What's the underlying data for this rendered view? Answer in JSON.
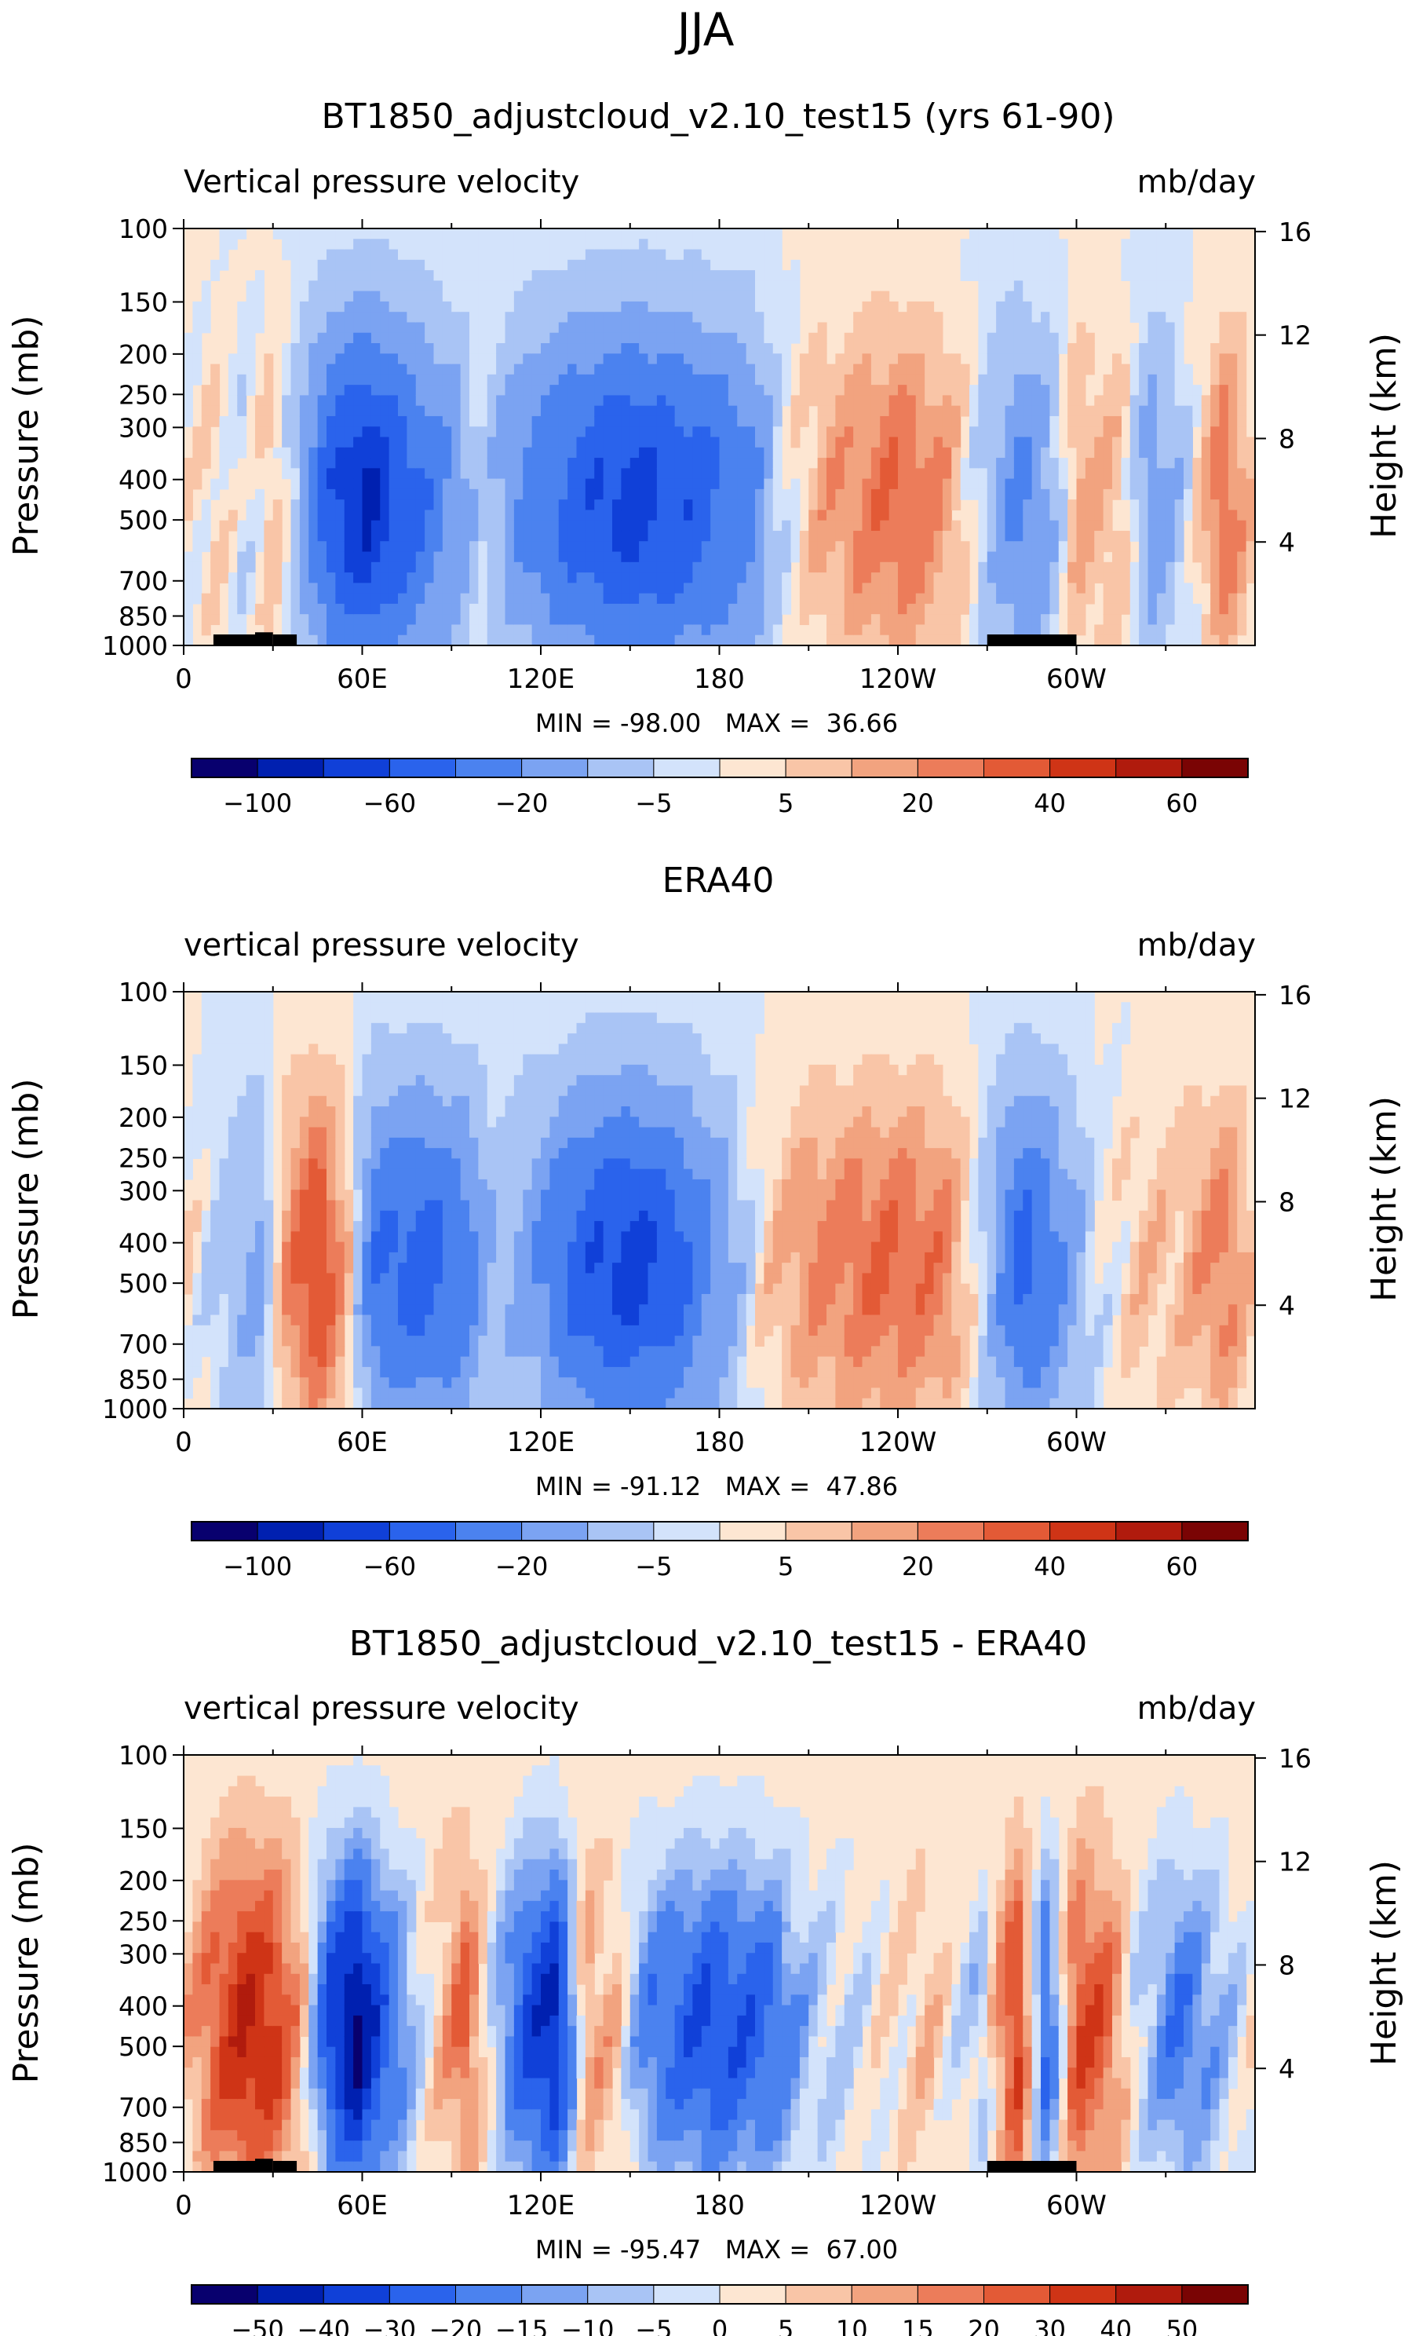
{
  "season": "JJA",
  "axes_common": {
    "xticks": [
      "0",
      "60E",
      "120E",
      "180",
      "120W",
      "60W"
    ],
    "xtick_deg": [
      0,
      60,
      120,
      180,
      240,
      300
    ],
    "x_range_deg": [
      0,
      360
    ],
    "pressure_ticks": [
      "100",
      "150",
      "200",
      "250",
      "300",
      "400",
      "500",
      "700",
      "850",
      "1000"
    ],
    "pressure_vals": [
      100,
      150,
      200,
      250,
      300,
      400,
      500,
      700,
      850,
      1000
    ],
    "height_ticks": [
      "16",
      "12",
      "8",
      "4"
    ],
    "height_vals": [
      16,
      12,
      8,
      4
    ],
    "ylabel_left": "Pressure (mb)",
    "ylabel_right": "Height (km)"
  },
  "colors": {
    "scale12": [
      "#08006e",
      "#0020b0",
      "#1040d8",
      "#2a63ec",
      "#4b82ef",
      "#7ba3f2",
      "#a9c4f5",
      "#d3e3fb",
      "#fde6d2",
      "#f9c5a7",
      "#f2a37f",
      "#ec7c5a",
      "#e35a36",
      "#cf3416",
      "#b01b0d",
      "#7a0404"
    ],
    "scale16": [
      "#08006e",
      "#0020b0",
      "#1040d8",
      "#2a63ec",
      "#4b82ef",
      "#7ba3f2",
      "#a9c4f5",
      "#d3e3fb",
      "#fde6d2",
      "#f9c5a7",
      "#f2a37f",
      "#ec7c5a",
      "#e35a36",
      "#cf3416",
      "#b01b0d",
      "#7a0404"
    ]
  },
  "chart_data": [
    {
      "type": "heatmap",
      "title": "BT1850_adjustcloud_v2.10_test15 (yrs 61-90)",
      "subtitle_left": "Vertical pressure velocity",
      "subtitle_right": "mb/day",
      "stats": "MIN = -98.00   MAX =  36.66",
      "min": -98.0,
      "max": 36.66,
      "colorbar_labels": [
        "−100",
        "−60",
        "−20",
        "−5",
        "5",
        "20",
        "40",
        "60"
      ],
      "colorbar_levels": 16,
      "field_profile": [
        [
          0,
          0
        ],
        [
          10,
          6
        ],
        [
          20,
          -4
        ],
        [
          30,
          10
        ],
        [
          38,
          -12
        ],
        [
          50,
          -70
        ],
        [
          62,
          -95
        ],
        [
          75,
          -60
        ],
        [
          90,
          -30
        ],
        [
          100,
          -5
        ],
        [
          115,
          -35
        ],
        [
          130,
          -60
        ],
        [
          150,
          -80
        ],
        [
          170,
          -65
        ],
        [
          190,
          -40
        ],
        [
          200,
          -5
        ],
        [
          215,
          15
        ],
        [
          240,
          30
        ],
        [
          255,
          20
        ],
        [
          270,
          -10
        ],
        [
          280,
          -35
        ],
        [
          290,
          -20
        ],
        [
          300,
          15
        ],
        [
          315,
          10
        ],
        [
          325,
          -25
        ],
        [
          335,
          -10
        ],
        [
          350,
          30
        ],
        [
          360,
          5
        ]
      ],
      "topography": [
        [
          10,
          24,
          1000
        ],
        [
          24,
          30,
          930
        ],
        [
          30,
          38,
          1000
        ],
        [
          270,
          300,
          1000
        ]
      ]
    },
    {
      "type": "heatmap",
      "title": "ERA40",
      "subtitle_left": "vertical pressure velocity",
      "subtitle_right": "mb/day",
      "stats": "MIN = -91.12   MAX =  47.86",
      "min": -91.12,
      "max": 47.86,
      "colorbar_labels": [
        "−100",
        "−60",
        "−20",
        "−5",
        "5",
        "20",
        "40",
        "60"
      ],
      "colorbar_levels": 16,
      "field_profile": [
        [
          0,
          5
        ],
        [
          12,
          -8
        ],
        [
          25,
          -20
        ],
        [
          35,
          20
        ],
        [
          45,
          45
        ],
        [
          55,
          10
        ],
        [
          65,
          -50
        ],
        [
          80,
          -60
        ],
        [
          95,
          -40
        ],
        [
          105,
          -10
        ],
        [
          120,
          -30
        ],
        [
          135,
          -65
        ],
        [
          150,
          -80
        ],
        [
          165,
          -60
        ],
        [
          180,
          -25
        ],
        [
          195,
          5
        ],
        [
          210,
          20
        ],
        [
          235,
          30
        ],
        [
          255,
          25
        ],
        [
          270,
          -10
        ],
        [
          282,
          -60
        ],
        [
          295,
          -30
        ],
        [
          305,
          -5
        ],
        [
          320,
          8
        ],
        [
          335,
          10
        ],
        [
          350,
          25
        ],
        [
          360,
          5
        ]
      ],
      "topography": []
    },
    {
      "type": "heatmap",
      "title": "BT1850_adjustcloud_v2.10_test15 - ERA40",
      "subtitle_left": "vertical pressure velocity",
      "subtitle_right": "mb/day",
      "stats": "MIN = -95.47   MAX =  67.00",
      "min": -95.47,
      "max": 67.0,
      "colorbar_labels": [
        "−50",
        "−40",
        "−30",
        "−20",
        "−15",
        "−10",
        "−5",
        "0",
        "5",
        "10",
        "15",
        "20",
        "30",
        "40",
        "50"
      ],
      "colorbar_levels": 16,
      "field_profile": [
        [
          0,
          5
        ],
        [
          10,
          20
        ],
        [
          20,
          35
        ],
        [
          30,
          30
        ],
        [
          40,
          5
        ],
        [
          50,
          -40
        ],
        [
          58,
          -60
        ],
        [
          68,
          -30
        ],
        [
          80,
          -5
        ],
        [
          95,
          20
        ],
        [
          105,
          -10
        ],
        [
          115,
          -35
        ],
        [
          125,
          -50
        ],
        [
          135,
          10
        ],
        [
          145,
          5
        ],
        [
          155,
          -20
        ],
        [
          175,
          -35
        ],
        [
          195,
          -30
        ],
        [
          210,
          -10
        ],
        [
          225,
          -5
        ],
        [
          250,
          5
        ],
        [
          268,
          -10
        ],
        [
          280,
          30
        ],
        [
          290,
          -30
        ],
        [
          300,
          25
        ],
        [
          310,
          20
        ],
        [
          320,
          -5
        ],
        [
          335,
          -25
        ],
        [
          350,
          -10
        ],
        [
          360,
          0
        ]
      ],
      "topography": [
        [
          10,
          24,
          1000
        ],
        [
          24,
          30,
          930
        ],
        [
          30,
          38,
          1000
        ],
        [
          270,
          300,
          1000
        ]
      ]
    }
  ]
}
